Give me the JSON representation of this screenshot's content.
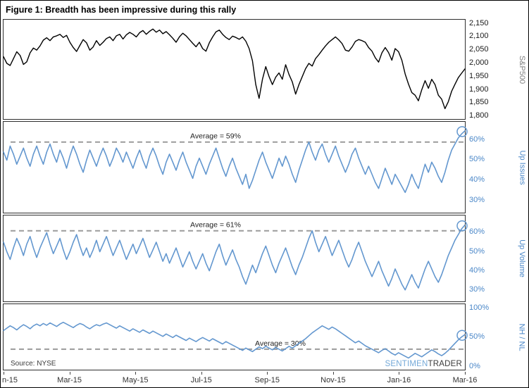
{
  "figure": {
    "title": "Figure 1: Breadth has been impressive during this rally",
    "source": "Source: NYSE",
    "watermark_blue": "SENTIMEN",
    "watermark_dark": "TRADER"
  },
  "x_axis": {
    "labels": [
      "n-15",
      "Mar-15",
      "May-15",
      "Jul-15",
      "Sep-15",
      "Nov-15",
      "Jan-16",
      "Mar-16"
    ],
    "positions": [
      0,
      0.1429,
      0.2857,
      0.4286,
      0.5714,
      0.7143,
      0.8571,
      1.0
    ]
  },
  "chart_data": [
    {
      "type": "line",
      "series": "sp500",
      "title": "S&P500",
      "color": "#000000",
      "stroke_width": 1.4,
      "tick_color": "#1a1a1a",
      "title_color": "#808080",
      "ylim": [
        1790,
        2165
      ],
      "tick_values": [
        2150,
        2100,
        2050,
        2000,
        1950,
        1900,
        1850,
        1800
      ],
      "tick_labels": [
        "2,150",
        "2,100",
        "2,050",
        "2,000",
        "1,950",
        "1,900",
        "1,850",
        "1,800"
      ],
      "values": [
        2025,
        2000,
        1992,
        2018,
        2044,
        2030,
        1996,
        2006,
        2040,
        2058,
        2050,
        2066,
        2088,
        2097,
        2086,
        2100,
        2104,
        2110,
        2098,
        2106,
        2080,
        2060,
        2045,
        2068,
        2090,
        2078,
        2050,
        2062,
        2086,
        2068,
        2080,
        2094,
        2100,
        2086,
        2104,
        2110,
        2092,
        2108,
        2117,
        2110,
        2100,
        2116,
        2124,
        2110,
        2121,
        2130,
        2118,
        2126,
        2112,
        2120,
        2108,
        2095,
        2080,
        2100,
        2114,
        2104,
        2090,
        2076,
        2063,
        2080,
        2056,
        2046,
        2078,
        2100,
        2119,
        2126,
        2110,
        2098,
        2090,
        2103,
        2098,
        2091,
        2100,
        2084,
        2056,
        2010,
        1920,
        1868,
        1940,
        1988,
        1950,
        1920,
        1948,
        1964,
        1940,
        1995,
        1958,
        1930,
        1884,
        1920,
        1950,
        1980,
        2000,
        1990,
        2018,
        2033,
        2050,
        2066,
        2080,
        2090,
        2100,
        2089,
        2075,
        2050,
        2046,
        2062,
        2083,
        2090,
        2086,
        2080,
        2060,
        2046,
        2021,
        2005,
        2040,
        2060,
        2041,
        2012,
        2056,
        2044,
        2012,
        1960,
        1922,
        1890,
        1880,
        1859,
        1900,
        1935,
        1906,
        1940,
        1920,
        1880,
        1865,
        1829,
        1855,
        1895,
        1921,
        1946,
        1963,
        1979
      ]
    },
    {
      "type": "line",
      "series": "up-issues",
      "title": "Up Issues",
      "color": "#6397cf",
      "stroke_width": 1.6,
      "tick_color": "#4a87c8",
      "title_color": "#4a87c8",
      "ylim": [
        24,
        69
      ],
      "tick_values": [
        60,
        50,
        40,
        30
      ],
      "tick_labels": [
        "60%",
        "50%",
        "40%",
        "30%"
      ],
      "average": 59,
      "average_label": "Average = 59%",
      "average_label_x": 0.46,
      "end_circle": true,
      "values": [
        54,
        50,
        57,
        53,
        48,
        52,
        56,
        51,
        47,
        53,
        57,
        52,
        48,
        54,
        58,
        53,
        49,
        55,
        51,
        46,
        52,
        57,
        53,
        48,
        44,
        50,
        55,
        51,
        47,
        52,
        56,
        52,
        47,
        51,
        56,
        53,
        49,
        54,
        50,
        46,
        51,
        55,
        50,
        46,
        52,
        56,
        52,
        47,
        43,
        49,
        53,
        49,
        45,
        50,
        54,
        49,
        45,
        41,
        47,
        51,
        47,
        43,
        48,
        52,
        56,
        51,
        46,
        42,
        47,
        51,
        46,
        42,
        38,
        43,
        36,
        40,
        45,
        50,
        54,
        49,
        45,
        41,
        46,
        51,
        47,
        52,
        48,
        43,
        39,
        45,
        50,
        55,
        59,
        54,
        50,
        55,
        58,
        53,
        49,
        53,
        57,
        52,
        48,
        44,
        48,
        53,
        56,
        51,
        47,
        43,
        47,
        43,
        39,
        36,
        41,
        46,
        42,
        38,
        43,
        40,
        37,
        34,
        38,
        43,
        39,
        36,
        42,
        48,
        44,
        49,
        46,
        42,
        39,
        44,
        50,
        55,
        58,
        61,
        63,
        64.5
      ]
    },
    {
      "type": "line",
      "series": "up-volume",
      "title": "Up Volume",
      "color": "#6397cf",
      "stroke_width": 1.6,
      "tick_color": "#4a87c8",
      "title_color": "#4a87c8",
      "ylim": [
        24,
        69
      ],
      "tick_values": [
        60,
        50,
        40,
        30
      ],
      "tick_labels": [
        "60%",
        "50%",
        "40%",
        "30%"
      ],
      "average": 61,
      "average_label": "Average = 61%",
      "average_label_x": 0.46,
      "end_circle": true,
      "values": [
        55,
        50,
        46,
        52,
        57,
        53,
        48,
        54,
        58,
        52,
        47,
        52,
        56,
        60,
        54,
        49,
        53,
        57,
        51,
        46,
        50,
        55,
        59,
        53,
        48,
        52,
        47,
        51,
        56,
        50,
        54,
        58,
        53,
        48,
        52,
        56,
        51,
        46,
        50,
        54,
        49,
        53,
        57,
        52,
        47,
        51,
        55,
        50,
        45,
        49,
        44,
        48,
        52,
        47,
        42,
        46,
        50,
        45,
        41,
        45,
        49,
        44,
        40,
        45,
        50,
        54,
        48,
        43,
        47,
        51,
        46,
        42,
        37,
        33,
        38,
        43,
        39,
        44,
        49,
        53,
        48,
        43,
        39,
        44,
        48,
        52,
        47,
        42,
        38,
        43,
        47,
        52,
        57,
        61,
        55,
        50,
        54,
        58,
        53,
        48,
        52,
        56,
        51,
        46,
        42,
        46,
        51,
        55,
        50,
        45,
        41,
        37,
        41,
        45,
        40,
        36,
        32,
        36,
        41,
        37,
        33,
        30,
        34,
        38,
        34,
        31,
        36,
        41,
        45,
        41,
        37,
        34,
        38,
        43,
        48,
        52,
        56,
        59,
        62,
        64
      ]
    },
    {
      "type": "line",
      "series": "nh-nl",
      "title": "NH / NL",
      "color": "#6397cf",
      "stroke_width": 1.6,
      "tick_color": "#4a87c8",
      "title_color": "#4a87c8",
      "ylim": [
        -5,
        107
      ],
      "tick_values": [
        100,
        50,
        0
      ],
      "tick_labels": [
        "100%",
        "50%",
        "0%"
      ],
      "average": 30,
      "average_label": "Average = 30%",
      "average_label_x": 0.6,
      "end_circle": true,
      "values": [
        62,
        66,
        70,
        67,
        63,
        68,
        72,
        69,
        65,
        70,
        73,
        70,
        74,
        71,
        75,
        72,
        69,
        73,
        76,
        73,
        70,
        67,
        71,
        74,
        72,
        68,
        65,
        69,
        72,
        70,
        73,
        75,
        72,
        69,
        66,
        70,
        67,
        64,
        61,
        65,
        62,
        59,
        63,
        60,
        57,
        61,
        58,
        55,
        52,
        56,
        53,
        50,
        54,
        51,
        48,
        45,
        49,
        46,
        43,
        47,
        50,
        47,
        44,
        48,
        45,
        42,
        39,
        43,
        40,
        37,
        34,
        31,
        28,
        32,
        29,
        26,
        30,
        34,
        31,
        35,
        32,
        29,
        33,
        30,
        27,
        31,
        35,
        32,
        36,
        40,
        44,
        48,
        53,
        58,
        62,
        66,
        70,
        67,
        64,
        68,
        65,
        61,
        57,
        53,
        49,
        45,
        41,
        44,
        40,
        36,
        33,
        30,
        27,
        24,
        28,
        31,
        27,
        23,
        20,
        24,
        21,
        18,
        15,
        19,
        23,
        20,
        17,
        21,
        25,
        29,
        26,
        22,
        19,
        23,
        28,
        34,
        40,
        46,
        51,
        55
      ]
    }
  ]
}
